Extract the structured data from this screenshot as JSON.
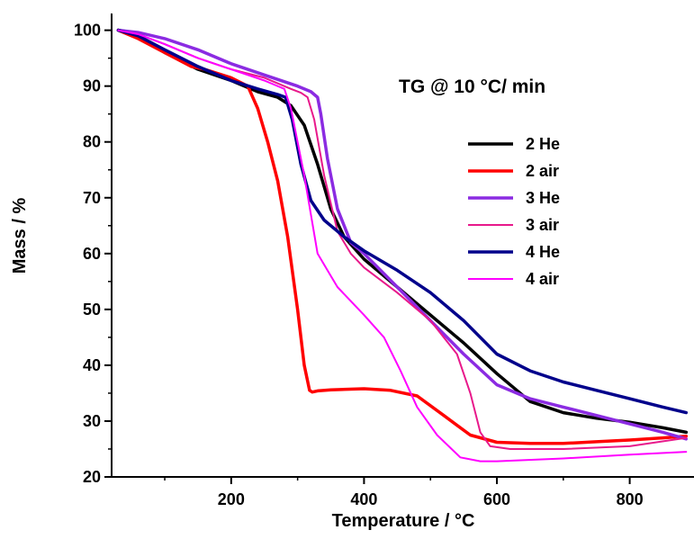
{
  "chart_data": {
    "type": "line",
    "title": "",
    "annotation": "TG @ 10 °C/ min",
    "xlabel": "Temperature / °C",
    "ylabel": "Mass / %",
    "xlim": [
      20,
      890
    ],
    "ylim": [
      20,
      103
    ],
    "xticks": [
      200,
      400,
      600,
      800
    ],
    "yticks": [
      20,
      30,
      40,
      50,
      60,
      70,
      80,
      90,
      100
    ],
    "legend_position": "right",
    "grid": false,
    "series": [
      {
        "name": "2 He",
        "color": "#000000",
        "width": 3.5,
        "x": [
          30,
          60,
          100,
          150,
          200,
          240,
          270,
          290,
          310,
          330,
          350,
          370,
          400,
          450,
          500,
          550,
          600,
          650,
          700,
          750,
          800,
          850,
          885
        ],
        "y": [
          100,
          99,
          96,
          93,
          91,
          89,
          88,
          86.5,
          83,
          76,
          68,
          63,
          59,
          54,
          49,
          44,
          38.5,
          33.5,
          31.5,
          30.5,
          29.8,
          28.8,
          28
        ]
      },
      {
        "name": "2 air",
        "color": "#ff0000",
        "width": 3.5,
        "x": [
          30,
          60,
          100,
          140,
          160,
          200,
          225,
          240,
          255,
          270,
          285,
          300,
          310,
          318,
          322,
          330,
          350,
          400,
          440,
          480,
          520,
          560,
          600,
          650,
          700,
          750,
          800,
          850,
          885
        ],
        "y": [
          100,
          98.5,
          96,
          93.5,
          93,
          91.5,
          90,
          86,
          80,
          73,
          63,
          50,
          40,
          35.5,
          35.2,
          35.4,
          35.6,
          35.8,
          35.5,
          34.5,
          31,
          27.5,
          26.2,
          26,
          26,
          26.3,
          26.6,
          27,
          27.3
        ]
      },
      {
        "name": "3 He",
        "color": "#8b2be2",
        "width": 3.5,
        "x": [
          30,
          60,
          100,
          150,
          200,
          250,
          300,
          320,
          330,
          335,
          345,
          360,
          380,
          400,
          450,
          500,
          550,
          600,
          650,
          700,
          750,
          800,
          850,
          885
        ],
        "y": [
          100,
          99.6,
          98.5,
          96.5,
          94,
          92,
          90,
          89,
          88,
          85,
          77,
          68,
          62,
          60,
          54,
          48,
          42,
          36.5,
          34,
          32.5,
          31,
          29.5,
          28,
          26.8
        ]
      },
      {
        "name": "3 air",
        "color": "#e8198b",
        "width": 2,
        "x": [
          30,
          60,
          100,
          150,
          200,
          250,
          290,
          305,
          315,
          325,
          340,
          360,
          380,
          400,
          450,
          500,
          540,
          560,
          575,
          590,
          620,
          700,
          800,
          885
        ],
        "y": [
          100,
          99.3,
          97.5,
          95,
          93,
          91.5,
          89.5,
          88.8,
          88,
          84,
          74,
          64,
          60,
          57.5,
          53,
          48,
          42,
          35,
          28,
          25.5,
          25,
          25,
          25.5,
          27
        ]
      },
      {
        "name": "4 He",
        "color": "#00008b",
        "width": 3.5,
        "x": [
          30,
          60,
          100,
          150,
          200,
          240,
          270,
          282,
          292,
          305,
          320,
          340,
          370,
          400,
          450,
          500,
          550,
          600,
          650,
          700,
          750,
          800,
          850,
          885
        ],
        "y": [
          100,
          99,
          96.5,
          93.5,
          91,
          89.5,
          88.5,
          88,
          84,
          76,
          69.5,
          66,
          63,
          60.5,
          57,
          53,
          48,
          42,
          39,
          37,
          35.5,
          34,
          32.5,
          31.5
        ]
      },
      {
        "name": "4 air",
        "color": "#ff00ff",
        "width": 2,
        "x": [
          30,
          60,
          100,
          150,
          200,
          250,
          280,
          290,
          300,
          310,
          320,
          330,
          345,
          360,
          400,
          430,
          455,
          480,
          510,
          545,
          575,
          600,
          700,
          800,
          885
        ],
        "y": [
          100,
          99.3,
          97.5,
          95,
          93,
          91,
          89.5,
          86,
          80,
          74,
          67,
          60,
          57,
          54,
          49,
          45,
          39,
          32.5,
          27.5,
          23.5,
          22.8,
          22.8,
          23.3,
          24,
          24.5
        ]
      }
    ]
  }
}
